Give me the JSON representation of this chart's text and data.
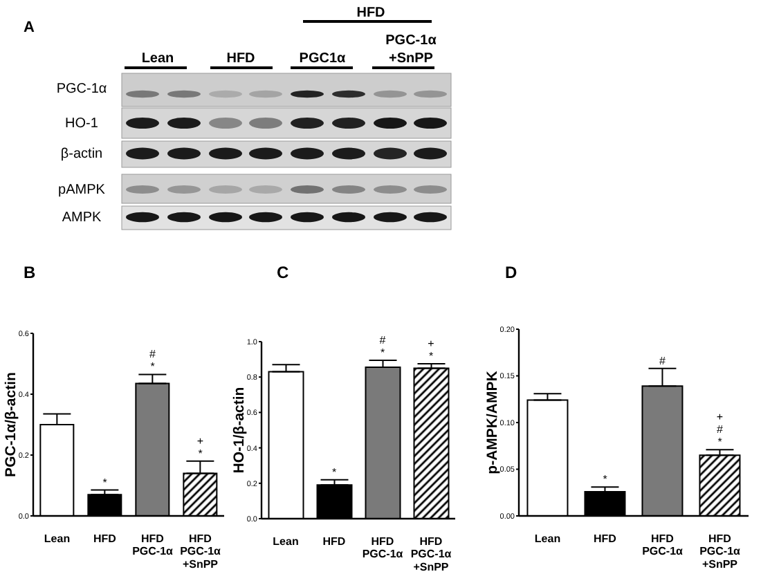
{
  "chart_data": [
    {
      "type": "other",
      "title": "A",
      "annotations": [
        "HFD",
        "Lean",
        "HFD",
        "PGC1α",
        "PGC-1α\n+SnPP",
        "PGC-1α",
        "HO-1",
        "β-actin",
        "pAMPK",
        "AMPK"
      ]
    },
    {
      "type": "bar",
      "title": "B",
      "ylabel": "PGC-1α/β-actin",
      "categories": [
        "Lean",
        "HFD",
        "HFD\nPGC-1α",
        "HFD\nPGC-1α\n+SnPP"
      ],
      "values": [
        0.3,
        0.07,
        0.435,
        0.14
      ],
      "errors": [
        [
          0.3,
          0.335
        ],
        [
          0.07,
          0.085
        ],
        [
          0.435,
          0.465
        ],
        [
          0.14,
          0.18
        ]
      ],
      "colors": [
        "#ffffff",
        "#000000",
        "#7a7a7a",
        "#000000"
      ],
      "ylim": [
        0,
        0.6
      ],
      "yticks": [
        {
          "value": 0,
          "label": "0.0"
        },
        {
          "value": 0.2,
          "label": "0.2"
        },
        {
          "value": 0.4,
          "label": "0.4"
        },
        {
          "value": 0.6,
          "label": "0.6"
        }
      ],
      "annotations": [
        {
          "text": "*",
          "x": "HFD",
          "y": 0.085
        },
        {
          "text": "#\n*",
          "x": "HFD\nPGC-1α",
          "y": 0.465
        },
        {
          "text": "+\n*",
          "x": "HFD\nPGC-1α\n+SnPP",
          "y": 0.18
        }
      ]
    },
    {
      "type": "bar",
      "title": "C",
      "ylabel": "HO-1/β-actin",
      "categories": [
        "Lean",
        "HFD",
        "HFD\nPGC-1α",
        "HFD\nPGC-1α\n+SnPP"
      ],
      "values": [
        0.83,
        0.19,
        0.855,
        0.85
      ],
      "errors": [
        [
          0.83,
          0.87
        ],
        [
          0.19,
          0.22
        ],
        [
          0.855,
          0.895
        ],
        [
          0.85,
          0.875
        ]
      ],
      "colors": [
        "#ffffff",
        "#000000",
        "#7a7a7a",
        "#000000"
      ],
      "ylim": [
        0,
        1.0
      ],
      "yticks": [
        {
          "value": 0,
          "label": "0.0"
        },
        {
          "value": 0.2,
          "label": "0.2"
        },
        {
          "value": 0.4,
          "label": "0.4"
        },
        {
          "value": 0.6,
          "label": "0.6"
        },
        {
          "value": 0.8,
          "label": "0.8"
        },
        {
          "value": 1.0,
          "label": "1.0"
        }
      ],
      "annotations": [
        {
          "text": "*",
          "x": "HFD",
          "y": 0.22
        },
        {
          "text": "#\n*",
          "x": "HFD\nPGC-1α",
          "y": 0.895
        },
        {
          "text": "+\n*",
          "x": "HFD\nPGC-1α\n+SnPP",
          "y": 0.875
        }
      ]
    },
    {
      "type": "bar",
      "title": "D",
      "ylabel": "p-AMPK/AMPK",
      "categories": [
        "Lean",
        "HFD",
        "HFD\nPGC-1α",
        "HFD\nPGC-1α\n+SnPP"
      ],
      "values": [
        0.124,
        0.026,
        0.139,
        0.065
      ],
      "errors": [
        [
          0.124,
          0.131
        ],
        [
          0.026,
          0.031
        ],
        [
          0.139,
          0.158
        ],
        [
          0.065,
          0.071
        ]
      ],
      "colors": [
        "#ffffff",
        "#000000",
        "#7a7a7a",
        "#000000"
      ],
      "ylim": [
        0,
        0.2
      ],
      "yticks": [
        {
          "value": 0,
          "label": "0.00"
        },
        {
          "value": 0.05,
          "label": "0.05"
        },
        {
          "value": 0.1,
          "label": "0.10"
        },
        {
          "value": 0.15,
          "label": "0.15"
        },
        {
          "value": 0.2,
          "label": "0.20"
        }
      ],
      "annotations": [
        {
          "text": "*",
          "x": "HFD",
          "y": 0.031
        },
        {
          "text": "#",
          "x": "HFD\nPGC-1α",
          "y": 0.158
        },
        {
          "text": "+\n#\n*",
          "x": "HFD\nPGC-1α\n+SnPP",
          "y": 0.071
        }
      ]
    }
  ]
}
